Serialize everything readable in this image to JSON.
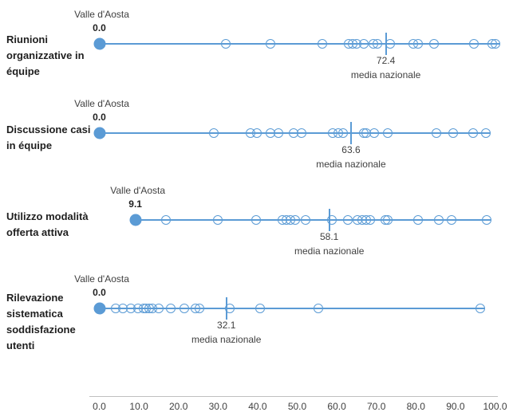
{
  "chart_data": {
    "type": "scatter",
    "description": "Horizontal strip plots of Italian regions, Valle d'Aosta highlighted, national mean marked",
    "x_ticks": [
      "0.0",
      "10.0",
      "20.0",
      "30.0",
      "40.0",
      "50.0",
      "60.0",
      "70.0",
      "80.0",
      "90.0",
      "100.0"
    ],
    "xlim": [
      0,
      100
    ],
    "highlight_label": "Valle d'Aosta",
    "annotation_label": "media nazionale",
    "accent_color": "#5B9BD5",
    "axis_line_color": "#BFBFBF",
    "text_color": "#404040",
    "label_color": "#1f1f1f",
    "series": [
      {
        "label": "Riunioni organizzative in équipe",
        "valle_daosta": 0.0,
        "valle_daosta_label": "0.0",
        "media_nazionale": 72.4,
        "media_nazionale_label": "72.4",
        "points": [
          31.9,
          43.2,
          56.4,
          63.0,
          64.0,
          65.0,
          66.9,
          69.3,
          70.3,
          73.5,
          79.4,
          80.6,
          84.6,
          94.7,
          99.3,
          100.0
        ]
      },
      {
        "label": "Discussione casi in équipe",
        "valle_daosta": 0.0,
        "valle_daosta_label": "0.0",
        "media_nazionale": 63.6,
        "media_nazionale_label": "63.6",
        "points": [
          28.9,
          38.2,
          39.8,
          43.2,
          45.3,
          49.1,
          51.1,
          59.0,
          60.3,
          61.5,
          66.8,
          67.4,
          69.4,
          72.8,
          85.1,
          89.5,
          94.5,
          97.6
        ]
      },
      {
        "label": "Utilizzo modalità offerta attiva",
        "valle_daosta": 9.1,
        "valle_daosta_label": "9.1",
        "media_nazionale": 58.1,
        "media_nazionale_label": "58.1",
        "points": [
          16.8,
          29.9,
          39.6,
          46.3,
          47.3,
          48.3,
          49.4,
          52.1,
          58.8,
          62.8,
          65.3,
          66.5,
          67.5,
          68.5,
          72.3,
          72.9,
          80.6,
          85.7,
          89.1,
          97.8
        ]
      },
      {
        "label": "Rilevazione sistematica soddisfazione utenti",
        "valle_daosta": 0.0,
        "valle_daosta_label": "0.0",
        "media_nazionale": 32.1,
        "media_nazionale_label": "32.1",
        "points": [
          4.2,
          5.9,
          7.9,
          9.7,
          11.2,
          11.8,
          12.5,
          13.5,
          15.0,
          18.0,
          21.4,
          24.2,
          25.3,
          32.9,
          40.6,
          55.4,
          96.2
        ]
      }
    ]
  }
}
